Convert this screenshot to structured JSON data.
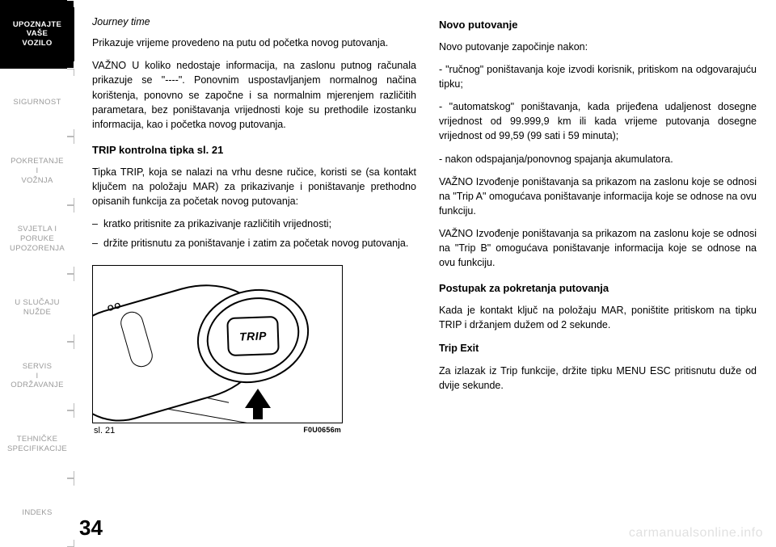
{
  "sidebar": {
    "items": [
      {
        "label": "UPOZNAJTE\nVAŠE\nVOZILO",
        "active": true
      },
      {
        "label": "SIGURNOST",
        "active": false
      },
      {
        "label": "POKRETANJE\nI\nVOŽNJA",
        "active": false
      },
      {
        "label": "SVJETLA I\nPORUKE\nUPOZORENJA",
        "active": false
      },
      {
        "label": "U SLUČAJU\nNUŽDE",
        "active": false
      },
      {
        "label": "SERVIS\nI\nODRŽAVANJE",
        "active": false
      },
      {
        "label": "TEHNIČKE\nSPECIFIKACIJE",
        "active": false
      },
      {
        "label": "INDEKS",
        "active": false
      }
    ]
  },
  "left": {
    "h_italic": "Journey time",
    "p1": "Prikazuje vrijeme provedeno na putu od početka novog putovanja.",
    "p2": "VAŽNO U koliko nedostaje informacija, na zaslonu putnog računala prikazuje se \"----\". Ponovnim uspostavljanjem normalnog načina korištenja, ponovno se započne i sa normalnim mjerenjem različitih parametara, bez poništavanja vrijednosti koje su prethodile izostanku informacija, kao i početka novog putovanja.",
    "h_bold": "TRIP kontrolna tipka sl. 21",
    "p3": "Tipka TRIP, koja se nalazi na vrhu desne ručice, koristi se (sa kontakt ključem na položaju MAR) za prikazivanje i poništavanje prethodno opisanih funkcija za početak novog putovanja:",
    "li1": "kratko pritisnite za prikazivanje različitih vrijednosti;",
    "li2": "držite pritisnutu za poništavanje i zatim za početak novog putovanja.",
    "fig_label": "sl. 21",
    "fig_code": "F0U0656m",
    "trip_btn": "TRIP"
  },
  "right": {
    "h1": "Novo putovanje",
    "p1": "Novo putovanje započinje nakon:",
    "p2": "- \"ručnog\" poništavanja koje izvodi korisnik, pritiskom na odgovarajuću tipku;",
    "p3": "- \"automatskog\" poništavanja, kada prijeđena udaljenost dosegne vrijednost od 99.999,9 km ili kada vrijeme putovanja dosegne vrijednost od 99,59 (99 sati i 59 minuta);",
    "p4": "- nakon odspajanja/ponovnog spajanja akumulatora.",
    "p5": "VAŽNO Izvođenje poništavanja sa prikazom na zaslonu koje se odnosi na \"Trip A\" omogućava poništavanje informacija koje se odnose na ovu funkciju.",
    "p6": "VAŽNO Izvođenje poništavanja sa prikazom na zaslonu koje se odnosi na \"Trip B\" omogućava poništavanje informacija koje se odnose na ovu funkciju.",
    "h2": "Postupak za pokretanja putovanja",
    "p7": "Kada je kontakt ključ na položaju MAR, poništite pritiskom na tipku TRIP i držanjem dužem od 2 sekunde.",
    "h3": "Trip Exit",
    "p8": "Za izlazak iz Trip funkcije, držite tipku MENU ESC pritisnutu duže od dvije sekunde."
  },
  "page_number": "34",
  "watermark": "carmanualsonline.info"
}
